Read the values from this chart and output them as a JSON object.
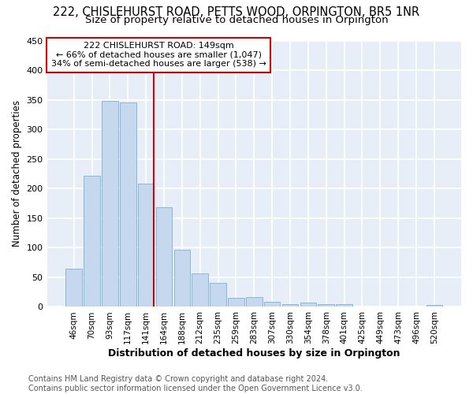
{
  "title1": "222, CHISLEHURST ROAD, PETTS WOOD, ORPINGTON, BR5 1NR",
  "title2": "Size of property relative to detached houses in Orpington",
  "xlabel": "Distribution of detached houses by size in Orpington",
  "ylabel": "Number of detached properties",
  "footer": "Contains HM Land Registry data © Crown copyright and database right 2024.\nContains public sector information licensed under the Open Government Licence v3.0.",
  "bar_labels": [
    "46sqm",
    "70sqm",
    "93sqm",
    "117sqm",
    "141sqm",
    "164sqm",
    "188sqm",
    "212sqm",
    "235sqm",
    "259sqm",
    "283sqm",
    "307sqm",
    "330sqm",
    "354sqm",
    "378sqm",
    "401sqm",
    "425sqm",
    "449sqm",
    "473sqm",
    "496sqm",
    "520sqm"
  ],
  "bar_values": [
    65,
    222,
    348,
    345,
    208,
    168,
    97,
    56,
    41,
    15,
    16,
    9,
    5,
    7,
    5,
    4,
    0,
    0,
    0,
    0,
    3
  ],
  "bar_color": "#c5d8ee",
  "bar_edge_color": "#7dafd4",
  "annotation_text": "222 CHISLEHURST ROAD: 149sqm\n← 66% of detached houses are smaller (1,047)\n34% of semi-detached houses are larger (538) →",
  "annotation_box_color": "#ffffff",
  "annotation_border_color": "#cc0000",
  "vline_color": "#cc0000",
  "vline_x_index": 4.42,
  "ylim": [
    0,
    450
  ],
  "yticks": [
    0,
    50,
    100,
    150,
    200,
    250,
    300,
    350,
    400,
    450
  ],
  "bg_color": "#e8eef8",
  "grid_color": "#ffffff",
  "title1_fontsize": 10.5,
  "title2_fontsize": 9.5,
  "xlabel_fontsize": 9,
  "ylabel_fontsize": 8.5,
  "footer_fontsize": 7,
  "tick_fontsize": 7.5,
  "ytick_fontsize": 8
}
